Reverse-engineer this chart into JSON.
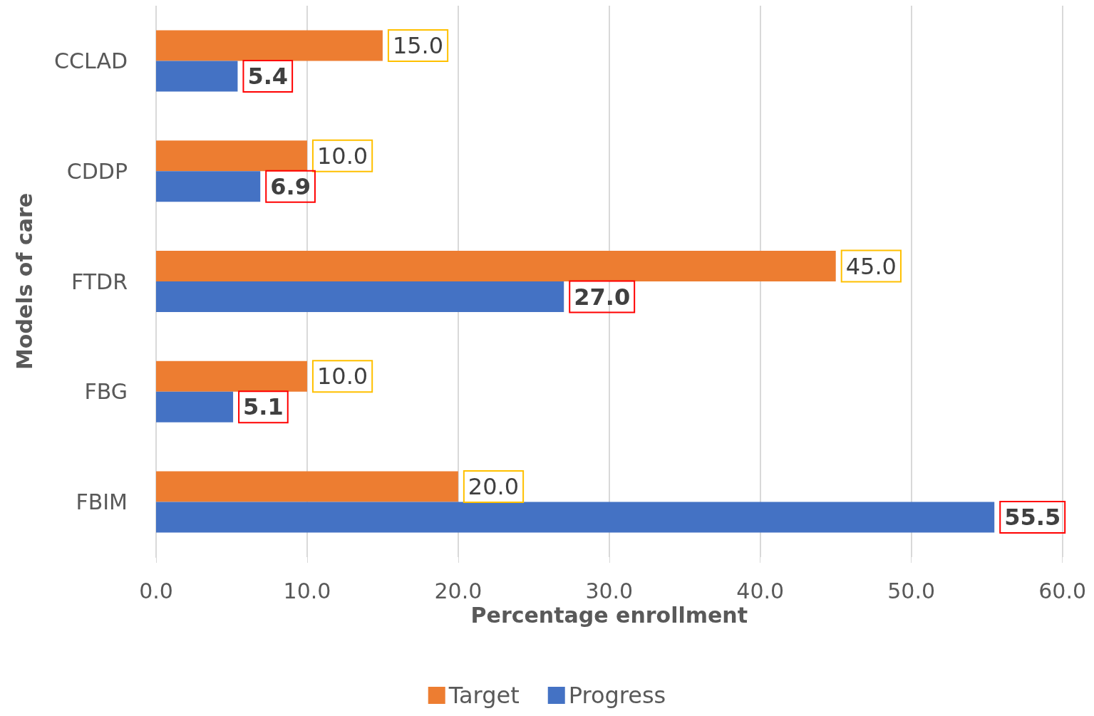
{
  "chart_data": {
    "type": "bar",
    "orientation": "horizontal",
    "xlabel": "Percentage enrollment",
    "ylabel": "Models of care",
    "categories": [
      "CCLAD",
      "CDDP",
      "FTDR",
      "FBG",
      "FBIM"
    ],
    "series": [
      {
        "name": "Target",
        "color": "#ed7d31",
        "values": [
          15.0,
          10.0,
          45.0,
          10.0,
          20.0
        ],
        "value_labels": [
          "15.0",
          "10.0",
          "45.0",
          "10.0",
          "20.0"
        ]
      },
      {
        "name": "Progress",
        "color": "#4472c4",
        "values": [
          5.4,
          6.9,
          27.0,
          5.1,
          55.5
        ],
        "value_labels": [
          "5.4",
          "6.9",
          "27.0",
          "5.1",
          "55.5"
        ]
      }
    ],
    "xlim": [
      0,
      60
    ],
    "xticks": [
      {
        "value": 0,
        "label": "0.0"
      },
      {
        "value": 10,
        "label": "10.0"
      },
      {
        "value": 20,
        "label": "20.0"
      },
      {
        "value": 30,
        "label": "30.0"
      },
      {
        "value": 40,
        "label": "40.0"
      },
      {
        "value": 50,
        "label": "50.0"
      },
      {
        "value": 60,
        "label": "60.0"
      }
    ],
    "grid": "x",
    "legend": "bottom"
  }
}
